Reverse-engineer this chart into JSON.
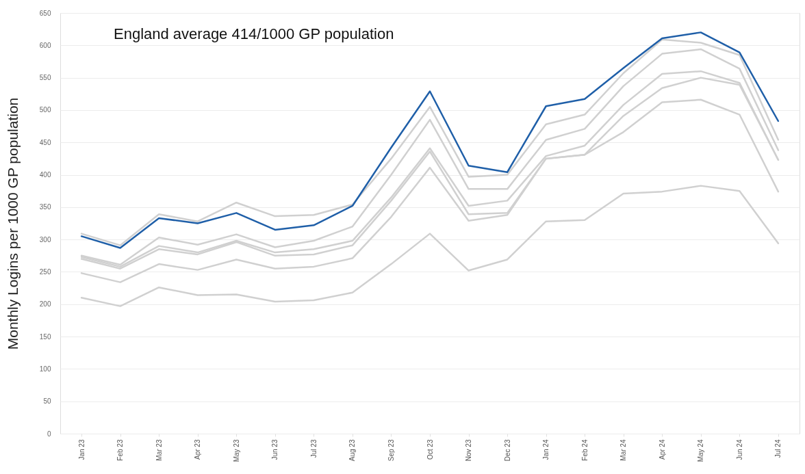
{
  "chart_data": {
    "type": "line",
    "title": "England average 414/1000 GP population",
    "ylabel": "Monthly Logins per 1000 GP population",
    "categories": [
      "Jan 23",
      "Feb 23",
      "Mar 23",
      "Apr 23",
      "May 23",
      "Jun 23",
      "Jul 23",
      "Aug 23",
      "Sep 23",
      "Oct 23",
      "Nov 23",
      "Dec 23",
      "Jan 24",
      "Feb 24",
      "Mar 24",
      "Apr 24",
      "May 24",
      "Jun 24",
      "Jul 24"
    ],
    "series": [
      {
        "color": "#d0d0d0",
        "values": [
          309,
          291,
          339,
          328,
          357,
          336,
          338,
          354,
          425,
          505,
          397,
          400,
          478,
          493,
          557,
          609,
          604,
          585,
          454
        ]
      },
      {
        "color": "#d0d0d0",
        "values": [
          275,
          261,
          303,
          292,
          308,
          288,
          298,
          320,
          400,
          485,
          378,
          378,
          454,
          471,
          537,
          587,
          594,
          564,
          438
        ]
      },
      {
        "color": "#d0d0d0",
        "values": [
          273,
          258,
          290,
          280,
          298,
          280,
          285,
          298,
          365,
          441,
          352,
          360,
          429,
          445,
          508,
          556,
          560,
          542,
          423
        ]
      },
      {
        "color": "#d0d0d0",
        "values": [
          270,
          255,
          285,
          277,
          296,
          275,
          277,
          291,
          360,
          436,
          339,
          341,
          425,
          431,
          491,
          534,
          550,
          539,
          423
        ]
      },
      {
        "color": "#d0d0d0",
        "values": [
          248,
          234,
          262,
          253,
          269,
          255,
          258,
          271,
          335,
          411,
          329,
          338,
          425,
          431,
          466,
          512,
          516,
          493,
          374
        ]
      },
      {
        "color": "#d0d0d0",
        "values": [
          210,
          197,
          226,
          214,
          215,
          204,
          206,
          218,
          262,
          309,
          252,
          269,
          328,
          330,
          371,
          374,
          383,
          375,
          294
        ]
      },
      {
        "color": "#1f5fa8",
        "values": [
          305,
          287,
          333,
          325,
          341,
          315,
          322,
          352,
          442,
          529,
          414,
          404,
          506,
          517,
          565,
          611,
          620,
          589,
          483
        ]
      }
    ],
    "ylim": [
      0,
      650
    ],
    "yticks": [
      0,
      50,
      100,
      150,
      200,
      250,
      300,
      350,
      400,
      450,
      500,
      550,
      600,
      650
    ],
    "grid": "y",
    "legend": false,
    "marker": "none",
    "line_style": "solid"
  }
}
